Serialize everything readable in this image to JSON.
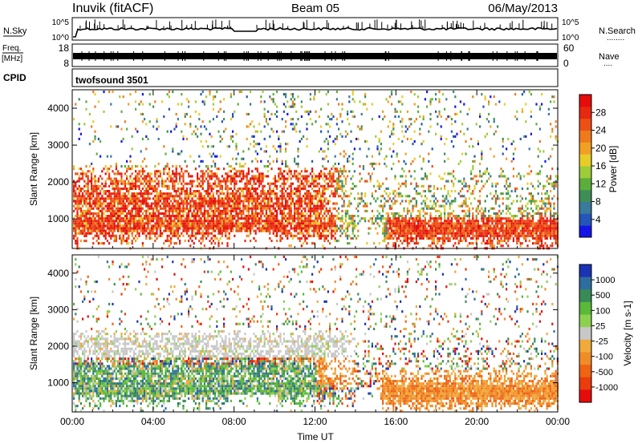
{
  "header": {
    "station": "Inuvik (fitACF)",
    "beam": "Beam 05",
    "date": "06/May/2013"
  },
  "nsky_panel": {
    "label": "N.Sky",
    "left_ticks": [
      "10^5",
      "10^0"
    ],
    "right_ticks": [
      "10^5",
      "10^0"
    ],
    "right_label": "N.Search",
    "right_dots": "........"
  },
  "freq_panel": {
    "label_line1": "Freq.",
    "label_line2": "[MHz]",
    "left_ticks": [
      "18",
      "8"
    ],
    "right_ticks": [
      "60",
      "0"
    ],
    "right_label": "Nave",
    "right_dots": "...."
  },
  "cpid_panel": {
    "label": "CPID",
    "program": "twofsound 3501"
  },
  "chart_data": [
    {
      "type": "heatmap",
      "name": "power",
      "ylabel": "Slant Range [km]",
      "xlabel": "",
      "y_ticks": [
        1000,
        2000,
        3000,
        4000
      ],
      "ylim": [
        200,
        4500
      ],
      "x_ticks": [
        "00:00",
        "04:00",
        "08:00",
        "12:00",
        "16:00",
        "20:00",
        "00:00"
      ],
      "xlim_hours": [
        0,
        24
      ],
      "colorbar": {
        "label": "Power [dB]",
        "ticks": [
          "4",
          "8",
          "12",
          "16",
          "20",
          "24",
          "28"
        ],
        "colors": [
          "#1414e6",
          "#2555b8",
          "#3a7a9a",
          "#3e8e58",
          "#5cae3c",
          "#9ccc38",
          "#e8cc28",
          "#f2a024",
          "#ef7a1c",
          "#ec5016",
          "#e82810",
          "#e60c0c"
        ]
      }
    },
    {
      "type": "heatmap",
      "name": "velocity",
      "ylabel": "Slant Range [km]",
      "xlabel": "Time UT",
      "y_ticks": [
        1000,
        2000,
        3000,
        4000
      ],
      "ylim": [
        200,
        4500
      ],
      "x_ticks": [
        "00:00",
        "04:00",
        "08:00",
        "12:00",
        "16:00",
        "20:00",
        "00:00"
      ],
      "xlim_hours": [
        0,
        24
      ],
      "colorbar": {
        "label": "Velocity [m s-1]",
        "ticks": [
          "1000",
          "500",
          "100",
          "25",
          "-25",
          "-100",
          "-500",
          "-1000"
        ],
        "colors": [
          "#1a32b4",
          "#2e6e9e",
          "#3a8a56",
          "#5ab83a",
          "#8cd050",
          "#c8c8c8",
          "#f0aa3a",
          "#f08c28",
          "#ee6414",
          "#ea3c0c",
          "#e60c0c"
        ]
      }
    }
  ]
}
